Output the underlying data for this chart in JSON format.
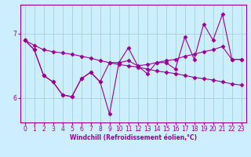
{
  "xlabel": "Windchill (Refroidissement éolien,°C)",
  "background_color": "#cceeff",
  "line_color": "#990099",
  "grid_color": "#99cccc",
  "yticks": [
    6,
    7
  ],
  "xticks": [
    0,
    1,
    2,
    3,
    4,
    5,
    6,
    7,
    8,
    9,
    10,
    11,
    12,
    13,
    14,
    15,
    16,
    17,
    18,
    19,
    20,
    21,
    22,
    23
  ],
  "ylim": [
    5.62,
    7.45
  ],
  "xlim": [
    -0.5,
    23.5
  ],
  "series1_x": [
    0,
    1,
    2,
    3,
    4,
    5,
    6,
    7,
    8,
    9,
    10,
    11,
    12,
    13,
    14,
    15,
    16,
    17,
    18,
    19,
    20,
    21,
    22,
    23
  ],
  "series1_y": [
    6.9,
    6.82,
    6.75,
    6.72,
    6.7,
    6.68,
    6.65,
    6.62,
    6.58,
    6.55,
    6.52,
    6.5,
    6.48,
    6.45,
    6.42,
    6.4,
    6.38,
    6.35,
    6.32,
    6.3,
    6.28,
    6.25,
    6.22,
    6.2
  ],
  "series2_x": [
    0,
    1,
    2,
    3,
    4,
    5,
    6,
    7,
    8,
    9,
    10,
    11,
    12,
    13,
    14,
    15,
    16,
    17,
    18,
    19,
    20,
    21,
    22,
    23
  ],
  "series2_y": [
    6.9,
    6.75,
    6.35,
    6.25,
    6.05,
    6.02,
    6.3,
    6.4,
    6.25,
    5.75,
    6.55,
    6.78,
    6.5,
    6.38,
    6.55,
    6.55,
    6.45,
    6.95,
    6.6,
    7.15,
    6.9,
    7.3,
    6.6,
    6.6
  ],
  "series3_x": [
    0,
    1,
    2,
    3,
    4,
    5,
    6,
    7,
    8,
    9,
    10,
    11,
    12,
    13,
    14,
    15,
    16,
    17,
    18,
    19,
    20,
    21,
    22,
    23
  ],
  "series3_y": [
    6.9,
    6.75,
    6.35,
    6.25,
    6.05,
    6.02,
    6.3,
    6.4,
    6.25,
    6.55,
    6.55,
    6.58,
    6.5,
    6.52,
    6.55,
    6.58,
    6.6,
    6.65,
    6.68,
    6.72,
    6.75,
    6.8,
    6.6,
    6.6
  ],
  "marker": "D",
  "markersize": 2.5,
  "linewidth": 0.8
}
